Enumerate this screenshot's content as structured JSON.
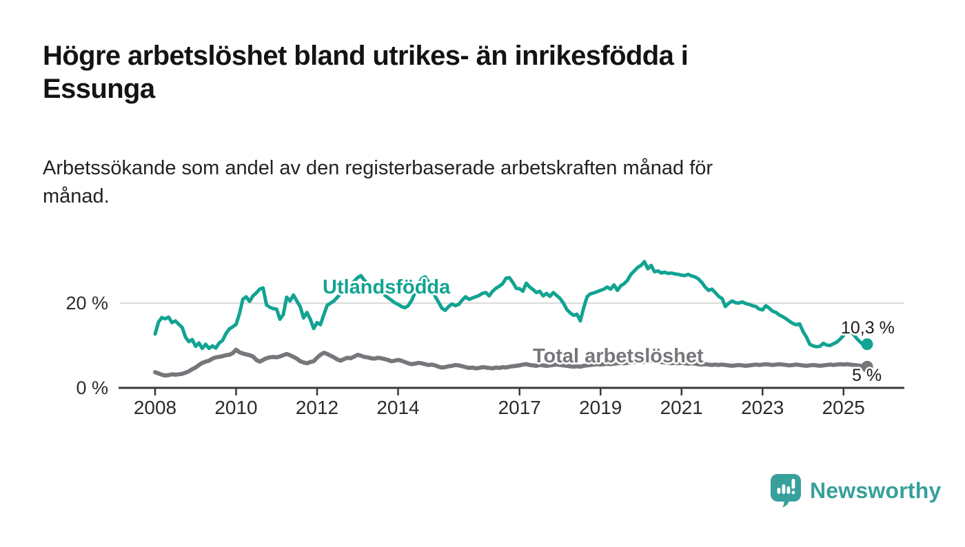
{
  "header": {
    "title": "Högre arbetslöshet bland utrikes- än inrikesfödda i\nEssunga",
    "subtitle": "Arbetssökande som andel av den registerbaserade arbetskraften månad för\nmånad."
  },
  "footer": {
    "brand": "Newsworthy"
  },
  "colors": {
    "foreign_born_line": "#12a392",
    "total_line": "#77767b",
    "brand_teal": "#37a09b",
    "axis": "#383838",
    "gridline": "#dadada",
    "text": "#131313"
  },
  "chart_data": {
    "type": "line",
    "title": "Högre arbetslöshet bland utrikes- än inrikesfödda i Essunga",
    "subtitle": "Arbetssökande som andel av den registerbaserade arbetskraften månad för månad.",
    "xlabel": "",
    "ylabel": "",
    "x_start": "2008-01",
    "x_end": "2025-08",
    "frequency": "monthly",
    "ylim": [
      0,
      31
    ],
    "legend_position": "inline-labels",
    "grid": "single-horizontal-at-20",
    "x_axis": {
      "tick_years": [
        2008,
        2010,
        2012,
        2014,
        2017,
        2019,
        2021,
        2023,
        2025
      ]
    },
    "y_axis": [
      {
        "label": "20 %",
        "value": 20,
        "grid": true
      },
      {
        "label": "0 %",
        "value": 0,
        "grid": false
      }
    ],
    "series": [
      {
        "name": "Utlandsfödda",
        "color": "#12a392",
        "end_label": "10,3 %",
        "end_value": 10.3,
        "values": [
          12.7,
          15.5,
          16.6,
          16.3,
          16.7,
          15.4,
          15.8,
          15.0,
          14.3,
          12.0,
          10.9,
          11.4,
          9.8,
          10.6,
          9.3,
          10.3,
          9.3,
          9.9,
          9.4,
          10.6,
          11.2,
          12.8,
          13.9,
          14.4,
          15.0,
          17.5,
          20.9,
          21.5,
          20.4,
          21.7,
          22.4,
          23.3,
          23.6,
          19.6,
          19.0,
          18.7,
          18.6,
          16.2,
          17.3,
          21.4,
          20.5,
          21.9,
          20.5,
          19.2,
          16.5,
          17.8,
          16.2,
          14.0,
          15.4,
          14.9,
          17.3,
          19.5,
          20.0,
          20.5,
          21.4,
          22.2,
          23.0,
          23.8,
          24.3,
          25.2,
          26.0,
          26.5,
          25.4,
          24.6,
          23.8,
          24.1,
          23.4,
          22.6,
          21.9,
          21.3,
          20.7,
          20.1,
          19.7,
          19.2,
          18.9,
          19.4,
          20.6,
          22.4,
          24.3,
          25.8,
          26.2,
          25.1,
          23.4,
          21.6,
          20.2,
          18.8,
          18.3,
          19.2,
          19.8,
          19.4,
          19.7,
          20.7,
          21.5,
          20.9,
          21.2,
          21.5,
          21.8,
          22.3,
          22.5,
          21.7,
          22.8,
          23.5,
          24.0,
          24.6,
          25.9,
          26.0,
          24.9,
          23.5,
          23.4,
          22.8,
          24.7,
          23.8,
          23.2,
          22.5,
          22.8,
          21.7,
          22.3,
          21.6,
          22.5,
          21.8,
          21.1,
          20.0,
          18.5,
          17.7,
          17.1,
          17.4,
          15.8,
          18.9,
          21.5,
          22.2,
          22.4,
          22.7,
          23.0,
          23.3,
          23.8,
          23.3,
          24.3,
          23.0,
          24.1,
          24.6,
          25.4,
          26.8,
          27.6,
          28.4,
          28.9,
          29.8,
          28.1,
          28.9,
          27.4,
          27.6,
          27.1,
          27.3,
          27.0,
          27.1,
          26.9,
          26.8,
          26.6,
          26.5,
          26.8,
          26.4,
          26.2,
          25.7,
          24.9,
          23.8,
          23.0,
          23.3,
          22.5,
          21.6,
          21.1,
          19.2,
          20.0,
          20.5,
          20.1,
          20.0,
          20.3,
          19.9,
          19.7,
          19.4,
          19.2,
          18.6,
          18.4,
          19.4,
          18.8,
          18.1,
          17.8,
          17.2,
          16.8,
          16.3,
          15.7,
          15.2,
          14.9,
          15.1,
          13.3,
          12.0,
          10.3,
          9.9,
          9.7,
          9.8,
          10.5,
          10.1,
          10.0,
          10.4,
          10.8,
          11.5,
          12.4,
          13.5,
          13.2,
          12.6,
          11.6,
          10.8,
          10.1,
          10.3
        ]
      },
      {
        "name": "Total arbetslöshet",
        "color": "#77767b",
        "end_label": "5 %",
        "end_value": 5.0,
        "values": [
          3.7,
          3.4,
          3.1,
          2.9,
          3.0,
          3.2,
          3.1,
          3.2,
          3.3,
          3.6,
          3.9,
          4.4,
          4.8,
          5.4,
          5.9,
          6.2,
          6.4,
          6.9,
          7.2,
          7.3,
          7.5,
          7.7,
          7.8,
          8.2,
          9.0,
          8.4,
          8.1,
          7.9,
          7.7,
          7.4,
          6.6,
          6.2,
          6.6,
          7.0,
          7.2,
          7.3,
          7.2,
          7.4,
          7.7,
          8.0,
          7.7,
          7.3,
          6.9,
          6.3,
          6.0,
          5.8,
          6.1,
          6.3,
          7.1,
          7.8,
          8.3,
          8.0,
          7.6,
          7.2,
          6.7,
          6.4,
          6.8,
          7.1,
          7.0,
          7.4,
          7.8,
          7.6,
          7.3,
          7.2,
          7.0,
          6.9,
          7.1,
          7.0,
          6.8,
          6.6,
          6.3,
          6.4,
          6.6,
          6.4,
          6.1,
          5.8,
          5.6,
          5.7,
          5.9,
          5.8,
          5.6,
          5.4,
          5.5,
          5.3,
          5.0,
          4.8,
          4.9,
          5.1,
          5.2,
          5.4,
          5.3,
          5.1,
          4.9,
          4.7,
          4.8,
          4.6,
          4.7,
          4.9,
          4.8,
          4.7,
          4.6,
          4.8,
          4.7,
          4.9,
          4.8,
          5.0,
          5.1,
          5.2,
          5.3,
          5.5,
          5.6,
          5.4,
          5.3,
          5.2,
          5.4,
          5.3,
          5.2,
          5.3,
          5.4,
          5.5,
          5.4,
          5.3,
          5.2,
          5.1,
          5.0,
          5.1,
          5.0,
          5.2,
          5.3,
          5.4,
          5.5,
          5.6,
          5.5,
          5.6,
          5.7,
          5.6,
          5.7,
          5.8,
          5.9,
          5.8,
          5.9,
          6.0,
          6.1,
          6.2,
          6.1,
          6.2,
          6.3,
          6.4,
          6.3,
          6.2,
          6.1,
          6.0,
          5.9,
          5.8,
          5.9,
          5.8,
          5.9,
          5.8,
          5.7,
          5.8,
          5.7,
          5.6,
          5.5,
          5.6,
          5.5,
          5.4,
          5.5,
          5.4,
          5.5,
          5.4,
          5.3,
          5.2,
          5.3,
          5.4,
          5.3,
          5.2,
          5.3,
          5.4,
          5.5,
          5.4,
          5.5,
          5.6,
          5.5,
          5.4,
          5.5,
          5.6,
          5.5,
          5.4,
          5.3,
          5.4,
          5.5,
          5.4,
          5.3,
          5.2,
          5.3,
          5.4,
          5.3,
          5.2,
          5.3,
          5.4,
          5.5,
          5.4,
          5.5,
          5.6,
          5.5,
          5.6,
          5.5,
          5.4,
          5.3,
          5.2,
          5.1,
          5.0
        ]
      }
    ]
  }
}
